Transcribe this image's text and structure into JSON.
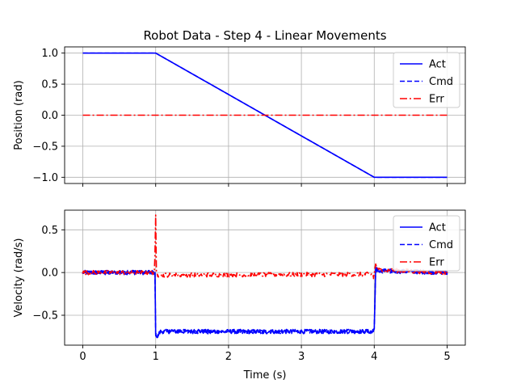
{
  "chart_data": {
    "title": "Robot Data - Step 4 - Linear Movements",
    "xlabel": "Time (s)",
    "xlim": [
      -0.25,
      5.25
    ],
    "xticks": [
      0,
      1,
      2,
      3,
      4,
      5
    ],
    "grid": true,
    "legend_placement": "top-right",
    "series_styles": {
      "Act": {
        "color": "#0000ff",
        "dash": "solid"
      },
      "Cmd": {
        "color": "#0000ff",
        "dash": "dashed"
      },
      "Err": {
        "color": "#ff0000",
        "dash": "dashdot"
      }
    },
    "subplots": [
      {
        "type": "line",
        "ylabel": "Position (rad)",
        "ylim": [
          -1.1,
          1.1
        ],
        "yticks": [
          1.0,
          0.5,
          0.0,
          -0.5,
          -1.0
        ],
        "ytick_labels": [
          "1.0",
          "0.5",
          "0.0",
          "−0.5",
          "−1.0"
        ],
        "series": [
          {
            "name": "Act",
            "x": [
              0,
              1,
              4,
              5
            ],
            "y": [
              1.0,
              1.0,
              -1.0,
              -1.0
            ]
          },
          {
            "name": "Cmd",
            "x": [
              0,
              1,
              4,
              5
            ],
            "y": [
              1.0,
              1.0,
              -1.0,
              -1.0
            ]
          },
          {
            "name": "Err",
            "x": [
              0,
              5
            ],
            "y": [
              0.0,
              0.0
            ]
          }
        ]
      },
      {
        "type": "line",
        "ylabel": "Velocity (rad/s)",
        "ylim": [
          -0.85,
          0.73
        ],
        "yticks": [
          0.5,
          0.0,
          -0.5
        ],
        "ytick_labels": [
          "0.5",
          "0.0",
          "−0.5"
        ],
        "noisy": true,
        "series": [
          {
            "name": "Act",
            "x": [
              0,
              0.99,
              1.0,
              1.02,
              1.06,
              3.99,
              4.0,
              4.02,
              4.05,
              5
            ],
            "y": [
              0.0,
              0.0,
              -0.72,
              -0.76,
              -0.69,
              -0.69,
              -0.66,
              0.05,
              0.02,
              0.0
            ]
          },
          {
            "name": "Cmd",
            "x": [
              0,
              0.99,
              1.0,
              1.02,
              1.06,
              3.99,
              4.0,
              4.02,
              4.05,
              5
            ],
            "y": [
              0.0,
              0.0,
              -0.72,
              -0.76,
              -0.69,
              -0.69,
              -0.66,
              0.05,
              0.02,
              0.0
            ]
          },
          {
            "name": "Err",
            "x": [
              0,
              0.98,
              0.99,
              1.0,
              1.01,
              1.03,
              3.98,
              3.99,
              4.0,
              4.02,
              4.05,
              5
            ],
            "y": [
              0.0,
              0.0,
              0.2,
              0.65,
              0.0,
              -0.03,
              -0.02,
              -0.06,
              -0.02,
              0.1,
              0.03,
              0.0
            ]
          }
        ]
      }
    ]
  }
}
